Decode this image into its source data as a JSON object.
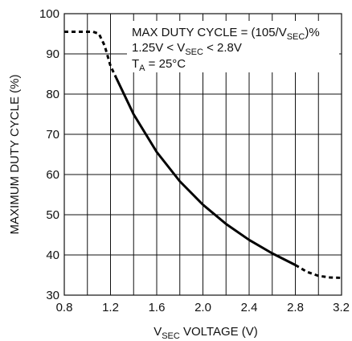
{
  "chart_data": {
    "type": "line",
    "xlabel_main": "V",
    "xlabel_sub": "SEC",
    "xlabel_rest": " VOLTAGE (V)",
    "ylabel": "MAXIMUM DUTY CYCLE (%)",
    "xlim": [
      0.8,
      3.2
    ],
    "ylim": [
      30,
      100
    ],
    "x_ticks": [
      "0.8",
      "1.2",
      "1.6",
      "2.0",
      "2.4",
      "2.8",
      "3.2"
    ],
    "y_ticks": [
      "30",
      "40",
      "50",
      "60",
      "70",
      "80",
      "90",
      "100"
    ],
    "x_grid_step": 0.2,
    "y_grid_step": 10,
    "grid": true,
    "annotations": {
      "line1_a": "MAX DUTY CYCLE = (105/V",
      "line1_sub": "SEC",
      "line1_b": ")%",
      "line2_a": "1.25V < V",
      "line2_sub": "SEC",
      "line2_b": " < 2.8V",
      "line3_a": "T",
      "line3_sub": "A",
      "line3_b": " = 25°C"
    },
    "series": [
      {
        "style": "dashed",
        "x": [
          0.8,
          0.9,
          1.0,
          1.05,
          1.1,
          1.15,
          1.2,
          1.25
        ],
        "y": [
          95.5,
          95.5,
          95.5,
          95.5,
          95.0,
          92.0,
          87.0,
          84.0
        ]
      },
      {
        "style": "solid",
        "x": [
          1.25,
          1.4,
          1.6,
          1.8,
          2.0,
          2.2,
          2.4,
          2.6,
          2.8
        ],
        "y": [
          84.0,
          75.0,
          65.6,
          58.3,
          52.5,
          47.7,
          43.75,
          40.4,
          37.5
        ]
      },
      {
        "style": "dashed",
        "x": [
          2.8,
          2.9,
          3.0,
          3.1,
          3.2
        ],
        "y": [
          37.5,
          35.8,
          34.8,
          34.4,
          34.3
        ]
      }
    ]
  }
}
